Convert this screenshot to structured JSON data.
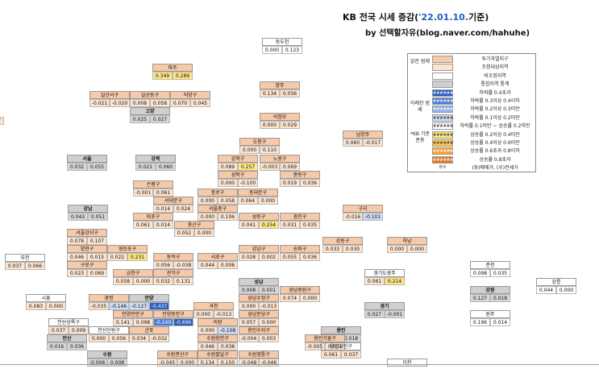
{
  "title": {
    "main_prefix": "KB 전국 시세 증감(",
    "date": "'22.01.10.",
    "main_suffix": "기준)",
    "sub": "by 선택할자유(blog.naver.com/hahuhe)"
  },
  "legend": {
    "group1": "읽칸 범례",
    "group2": "아래칸 범례",
    "group3": "*KB 기준 준용",
    "swatch_text": "######",
    "rows": [
      {
        "label": "투기과열지구",
        "swatch": "#f6c9a8"
      },
      {
        "label": "조정대상지역",
        "swatch": "#fde4cf"
      },
      {
        "label": "비조정지역",
        "swatch": "#ffffff"
      },
      {
        "label": "통합지역 통계",
        "swatch": "#cfcfcf"
      },
      {
        "label": "하락률 0.4초과",
        "swatch": "#2a5fbf"
      },
      {
        "label": "하락률 0.3이상 0.4이하",
        "swatch": "#4a7fd6"
      },
      {
        "label": "하락률 0.2이상 0.3미만",
        "swatch": "#8fb0e8"
      },
      {
        "label": "하락률 0.1이상 0.2미만",
        "swatch": "#cfdcf2"
      },
      {
        "label": "하락률 0.1미만 ~ 상승률 0.2미만",
        "swatch": "#ffffff"
      },
      {
        "label": "상승률 0.2이상 0.4미만",
        "swatch": "#ffe680"
      },
      {
        "label": "상승률 0.4이상 0.6미만",
        "swatch": "#ffc94d"
      },
      {
        "label": "상승률 0.6초과 0.8이하",
        "swatch": "#f4a030"
      },
      {
        "label": "상승률 0.8초과",
        "swatch": "#e07820"
      },
      {
        "label": "(좌)매매가, (우)전세가",
        "swatch": "#ffffff",
        "swatch_label": "좌우"
      }
    ]
  },
  "chart_data": {
    "type": "table",
    "title": "KB 전국 시세 증감('22.01.10.기준)",
    "value_columns": [
      "매매가",
      "전세가"
    ],
    "regions": [
      {
        "name": "동두천",
        "sale": "0.000",
        "jeonse": "0.123",
        "style": "none"
      },
      {
        "name": "파주",
        "sale": "0.349",
        "jeonse": "0.289",
        "style": "peach",
        "hl_sale": "yellow",
        "hl_jeonse": "yellow"
      },
      {
        "name": "양주",
        "sale": "0.134",
        "jeonse": "0.056",
        "style": "peach"
      },
      {
        "name": "일산서구",
        "sale": "-0.021",
        "jeonse": "-0.020",
        "style": "peach"
      },
      {
        "name": "일산동구",
        "sale": "0.008",
        "jeonse": "0.058",
        "style": "peach"
      },
      {
        "name": "덕양구",
        "sale": "0.070",
        "jeonse": "0.045",
        "style": "peach"
      },
      {
        "name": "고양",
        "sale": "0.025",
        "jeonse": "0.027",
        "style": "gray",
        "bold": true
      },
      {
        "name": "의정부",
        "sale": "0.000",
        "jeonse": "0.029",
        "style": "peach"
      },
      {
        "name": "도봉구",
        "sale": "0.000",
        "jeonse": "0.110",
        "style": "peach"
      },
      {
        "name": "남양주",
        "sale": "0.060",
        "jeonse": "-0.017",
        "style": "peach"
      },
      {
        "name": "서울",
        "sale": "0.032",
        "jeonse": "0.055",
        "style": "gray",
        "bold": true
      },
      {
        "name": "강북",
        "sale": "0.021",
        "jeonse": "0.060",
        "style": "gray",
        "bold": true
      },
      {
        "name": "강북구",
        "sale": "0.089",
        "jeonse": "0.257",
        "style": "peach",
        "hl_jeonse": "yellow"
      },
      {
        "name": "노원구",
        "sale": "-0.003",
        "jeonse": "0.069",
        "style": "peach"
      },
      {
        "name": "성북구",
        "sale": "0.000",
        "jeonse": "-0.100",
        "style": "peach"
      },
      {
        "name": "중랑구",
        "sale": "0.019",
        "jeonse": "0.036",
        "style": "peach"
      },
      {
        "name": "은평구",
        "sale": "-0.001",
        "jeonse": "0.061",
        "style": "peach"
      },
      {
        "name": "종로구",
        "sale": "0.000",
        "jeonse": "0.058",
        "style": "peach"
      },
      {
        "name": "동대문구",
        "sale": "0.064",
        "jeonse": "0.000",
        "style": "peach"
      },
      {
        "name": "서대문구",
        "sale": "0.014",
        "jeonse": "0.024",
        "style": "peach"
      },
      {
        "name": "서울중구",
        "sale": "0.000",
        "jeonse": "0.106",
        "style": "peach"
      },
      {
        "name": "강남",
        "sale": "0.043",
        "jeonse": "0.051",
        "style": "gray",
        "bold": true
      },
      {
        "name": "마포구",
        "sale": "0.061",
        "jeonse": "0.014",
        "style": "peach"
      },
      {
        "name": "용산구",
        "sale": "0.052",
        "jeonse": "0.000",
        "style": "peach"
      },
      {
        "name": "성동구",
        "sale": "0.041",
        "jeonse": "0.254",
        "style": "peach",
        "hl_jeonse": "yellow"
      },
      {
        "name": "광진구",
        "sale": "0.031",
        "jeonse": "0.035",
        "style": "peach"
      },
      {
        "name": "구리",
        "sale": "-0.016",
        "jeonse": "-0.101",
        "style": "peach",
        "hl_jeonse": "blue1"
      },
      {
        "name": "서울강서구",
        "sale": "0.078",
        "jeonse": "0.107",
        "style": "peach"
      },
      {
        "name": "양천구",
        "sale": "0.046",
        "jeonse": "0.015",
        "style": "peach"
      },
      {
        "name": "영등포구",
        "sale": "0.022",
        "jeonse": "0.231",
        "style": "peach",
        "hl_jeonse": "yellow"
      },
      {
        "name": "강동구",
        "sale": "0.033",
        "jeonse": "0.030",
        "style": "peach"
      },
      {
        "name": "하남",
        "sale": "0.000",
        "jeonse": "0.000",
        "style": "peach"
      },
      {
        "name": "부천",
        "sale": "0.037",
        "jeonse": "0.066",
        "style": "light"
      },
      {
        "name": "구로구",
        "sale": "0.023",
        "jeonse": "0.069",
        "style": "peach"
      },
      {
        "name": "동작구",
        "sale": "0.056",
        "jeonse": "-0.038",
        "style": "peach"
      },
      {
        "name": "서초구",
        "sale": "0.044",
        "jeonse": "0.008",
        "style": "peach"
      },
      {
        "name": "강남구",
        "sale": "0.028",
        "jeonse": "0.002",
        "style": "peach"
      },
      {
        "name": "송파구",
        "sale": "0.055",
        "jeonse": "0.036",
        "style": "peach"
      },
      {
        "name": "금천구",
        "sale": "0.058",
        "jeonse": "0.000",
        "style": "peach"
      },
      {
        "name": "관악구",
        "sale": "0.032",
        "jeonse": "0.131",
        "style": "peach"
      },
      {
        "name": "경기도광주",
        "sale": "0.061",
        "jeonse": "0.214",
        "style": "light",
        "hl_jeonse": "yellow"
      },
      {
        "name": "춘천",
        "sale": "0.098",
        "jeonse": "0.035",
        "style": "none"
      },
      {
        "name": "강릉",
        "sale": "0.044",
        "jeonse": "0.000",
        "style": "none"
      },
      {
        "name": "성남",
        "sale": "0.008",
        "jeonse": "0.001",
        "style": "gray",
        "bold": true
      },
      {
        "name": "성남중원구",
        "sale": "0.074",
        "jeonse": "0.000",
        "style": "peach"
      },
      {
        "name": "강원",
        "sale": "0.127",
        "jeonse": "0.018",
        "style": "gray",
        "bold": true
      },
      {
        "name": "시흥",
        "sale": "0.083",
        "jeonse": "0.000",
        "style": "light"
      },
      {
        "name": "광명",
        "sale": "-0.035",
        "jeonse": "-0.146",
        "style": "peach",
        "hl_jeonse": "blue1"
      },
      {
        "name": "안양",
        "sale": "-0.127",
        "jeonse": "-0.437",
        "style": "gray",
        "bold": true,
        "hl_sale": "blue1",
        "hl_jeonse": "blue3"
      },
      {
        "name": "과천",
        "sale": "0.000",
        "jeonse": "-0.013",
        "style": "peach"
      },
      {
        "name": "성남수정구",
        "sale": "0.000",
        "jeonse": "-0.013",
        "style": "peach"
      },
      {
        "name": "경기",
        "sale": "0.027",
        "jeonse": "-0.001",
        "style": "gray",
        "bold": true
      },
      {
        "name": "안양만안구",
        "sale": "0.141",
        "jeonse": "0.098",
        "style": "peach"
      },
      {
        "name": "안양동안구",
        "sale": "-0.249",
        "jeonse": "-0.696",
        "style": "peach",
        "hl_sale": "blue2",
        "hl_jeonse": "blue3"
      },
      {
        "name": "성남분당구",
        "sale": "0.057",
        "jeonse": "0.000",
        "style": "peach"
      },
      {
        "name": "원주",
        "sale": "0.196",
        "jeonse": "0.014",
        "style": "none"
      },
      {
        "name": "안산상록구",
        "sale": "0.037",
        "jeonse": "0.009",
        "style": "light"
      },
      {
        "name": "의왕",
        "sale": "0.000",
        "jeonse": "-0.108",
        "style": "peach",
        "hl_jeonse": "blue1"
      },
      {
        "name": "용인수지구",
        "sale": "-0.004",
        "jeonse": "0.003",
        "style": "peach"
      },
      {
        "name": "용인",
        "sale": "-0.001",
        "jeonse": "0.018",
        "style": "gray",
        "bold": true
      },
      {
        "name": "안산단원구",
        "sale": "0.000",
        "jeonse": "0.056",
        "style": "light"
      },
      {
        "name": "군포",
        "sale": "0.034",
        "jeonse": "-0.032",
        "style": "peach"
      },
      {
        "name": "용인기흥구",
        "sale": "-0.005",
        "jeonse": "0.031",
        "style": "peach"
      },
      {
        "name": "안산",
        "sale": "0.016",
        "jeonse": "0.036",
        "style": "gray",
        "bold": true
      },
      {
        "name": "수원장안구",
        "sale": "0.046",
        "jeonse": "0.038",
        "style": "peach"
      },
      {
        "name": "용인처인구",
        "sale": "0.061",
        "jeonse": "0.037",
        "style": "light"
      },
      {
        "name": "수원",
        "sale": "-0.006",
        "jeonse": "0.008",
        "style": "gray",
        "bold": true
      },
      {
        "name": "수원권선구",
        "sale": "-0.045",
        "jeonse": "0.000",
        "style": "peach"
      },
      {
        "name": "수원팔달구",
        "sale": "0.134",
        "jeonse": "0.150",
        "style": "peach"
      },
      {
        "name": "수원영통구",
        "sale": "-0.048",
        "jeonse": "-0.046",
        "style": "peach"
      },
      {
        "name": "이천",
        "sale": "",
        "jeonse": "",
        "style": "none"
      }
    ],
    "edge_values": [
      "0.037",
      "0.066"
    ]
  }
}
